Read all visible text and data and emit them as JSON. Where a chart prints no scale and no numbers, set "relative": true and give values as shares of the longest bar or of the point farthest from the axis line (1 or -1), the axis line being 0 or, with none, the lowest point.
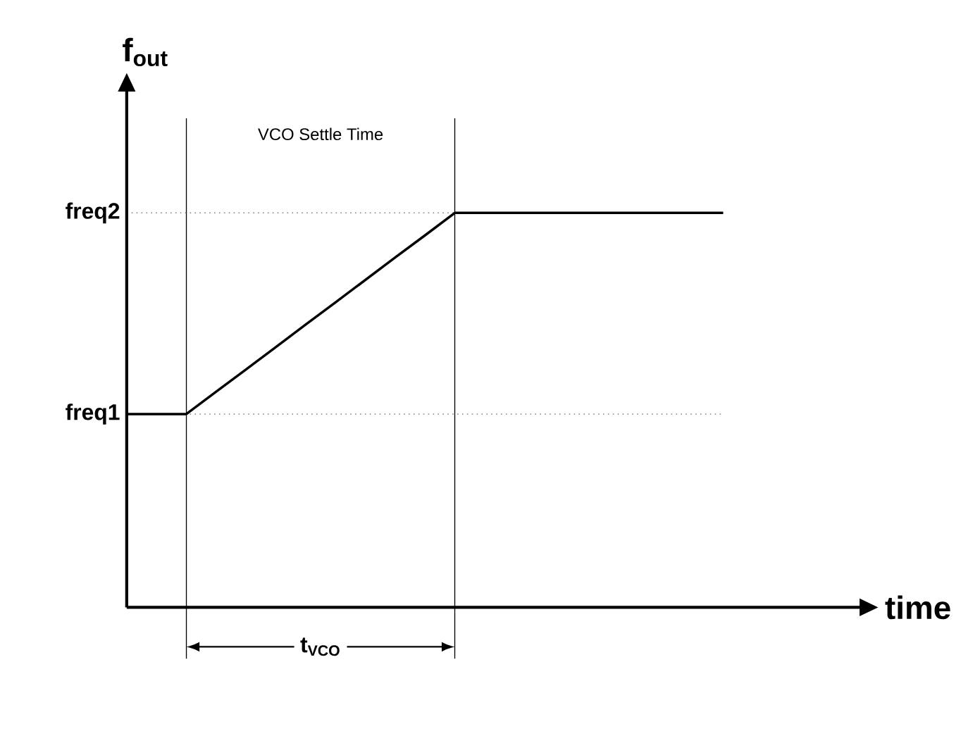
{
  "chart_data": {
    "type": "line",
    "relative": true,
    "ylabel": "f$_{out}$",
    "categories": [
      null,
      null,
      null,
      null,
      null,
      null,
      null,
      null,
      null,
      null,
      null,
      null,
      null,
      null,
      null,
      null,
      null,
      null,
      null,
      null,
      null
    ],
    "values": [
      0.49,
      0.49,
      0.49,
      0.547,
      0.603,
      0.66,
      0.717,
      0.773,
      0.83,
      0.887,
      0.943,
      1,
      1,
      1,
      1,
      1,
      1,
      1,
      1,
      1,
      1
    ],
    "color": "#000000",
    "marker": "none",
    "line_style": "solid",
    "ref_lines": [
      {
        "axis": "y",
        "value": 0.49,
        "label": "freq1",
        "line_style": "dotted",
        "color": "#808080"
      },
      {
        "axis": "y",
        "value": 1,
        "label": "freq2",
        "line_style": "dotted",
        "color": "#808080"
      }
    ],
    "annotations": [
      "VCO Settle Time",
      "t$_{VCO}$",
      "time"
    ]
  }
}
